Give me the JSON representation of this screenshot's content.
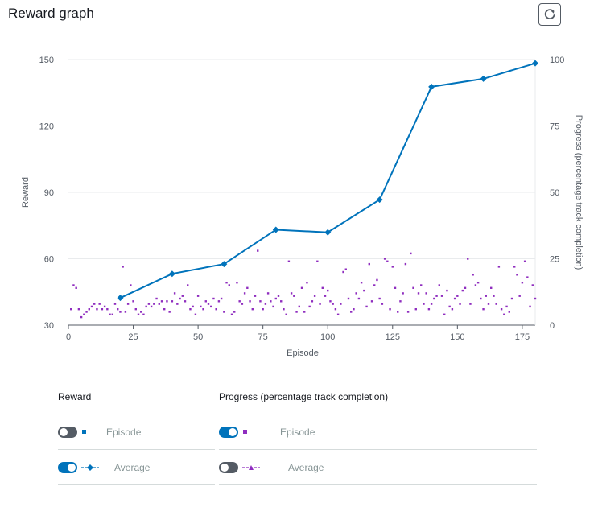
{
  "title": "Reward graph",
  "refresh_icon": "refresh-icon",
  "colors": {
    "reward": "#0073bb",
    "progress": "#8f2dbf",
    "grid": "#e9ebed",
    "axis": "#545b64"
  },
  "chart_data": {
    "type": "line",
    "xlabel": "Episode",
    "ylabel": "Reward",
    "y2label": "Progress (percentage track completion)",
    "xlim": [
      0,
      180
    ],
    "ylim": [
      30,
      150
    ],
    "y2lim": [
      0,
      100
    ],
    "x_ticks": [
      0,
      25,
      50,
      75,
      100,
      125,
      150,
      175
    ],
    "y_ticks": [
      30,
      60,
      90,
      120,
      150
    ],
    "y2_ticks": [
      0,
      25,
      50,
      75,
      100
    ],
    "grid": true,
    "series": [
      {
        "name": "Average",
        "group": "Reward",
        "axis": "left",
        "marker": "diamond",
        "x": [
          20,
          40,
          60,
          80,
          100,
          120,
          140,
          160,
          180
        ],
        "values": [
          42.3,
          53.2,
          57.6,
          73.1,
          71.9,
          86.7,
          137.7,
          141.3,
          148.3
        ]
      },
      {
        "name": "Episode",
        "group": "Progress (percentage track completion)",
        "axis": "right",
        "marker": "square",
        "x": [
          1,
          2,
          3,
          4,
          5,
          6,
          7,
          8,
          9,
          10,
          11,
          12,
          13,
          14,
          15,
          16,
          17,
          18,
          19,
          20,
          21,
          22,
          23,
          24,
          25,
          26,
          27,
          28,
          29,
          30,
          31,
          32,
          33,
          34,
          35,
          36,
          37,
          38,
          39,
          40,
          41,
          42,
          43,
          44,
          45,
          46,
          47,
          48,
          49,
          50,
          51,
          52,
          53,
          54,
          55,
          56,
          57,
          58,
          59,
          60,
          61,
          62,
          63,
          64,
          65,
          66,
          67,
          68,
          69,
          70,
          71,
          72,
          73,
          74,
          75,
          76,
          77,
          78,
          79,
          80,
          81,
          82,
          83,
          84,
          85,
          86,
          87,
          88,
          89,
          90,
          91,
          92,
          93,
          94,
          95,
          96,
          97,
          98,
          99,
          100,
          101,
          102,
          103,
          104,
          105,
          106,
          107,
          108,
          109,
          110,
          111,
          112,
          113,
          114,
          115,
          116,
          117,
          118,
          119,
          120,
          121,
          122,
          123,
          124,
          125,
          126,
          127,
          128,
          129,
          130,
          131,
          132,
          133,
          134,
          135,
          136,
          137,
          138,
          139,
          140,
          141,
          142,
          143,
          144,
          145,
          146,
          147,
          148,
          149,
          150,
          151,
          152,
          153,
          154,
          155,
          156,
          157,
          158,
          159,
          160,
          161,
          162,
          163,
          164,
          165,
          166,
          167,
          168,
          169,
          170,
          171,
          172,
          173,
          174,
          175,
          176,
          177,
          178,
          179,
          180
        ],
        "values": [
          6,
          15,
          14,
          6,
          3,
          4,
          5,
          6,
          7,
          8,
          6,
          8,
          6,
          7,
          6,
          4,
          4,
          8,
          6,
          5,
          22,
          5,
          8,
          15,
          9,
          6,
          4,
          5,
          4,
          7,
          8,
          7,
          8,
          10,
          8,
          9,
          6,
          9,
          5,
          9,
          12,
          8,
          10,
          11,
          9,
          15,
          6,
          7,
          4,
          11,
          7,
          6,
          9,
          8,
          7,
          10,
          6,
          9,
          10,
          5,
          16,
          15,
          4,
          5,
          16,
          9,
          8,
          12,
          14,
          9,
          6,
          11,
          28,
          9,
          6,
          8,
          12,
          9,
          7,
          10,
          11,
          9,
          6,
          4,
          24,
          12,
          11,
          5,
          7,
          14,
          5,
          16,
          7,
          9,
          11,
          24,
          8,
          14,
          11,
          13,
          9,
          8,
          6,
          4,
          8,
          20,
          21,
          10,
          5,
          6,
          12,
          10,
          16,
          13,
          7,
          23,
          9,
          15,
          17,
          10,
          8,
          25,
          24,
          6,
          22,
          14,
          5,
          9,
          12,
          23,
          5,
          27,
          14,
          6,
          12,
          15,
          8,
          12,
          6,
          8,
          10,
          11,
          15,
          11,
          4,
          13,
          7,
          6,
          10,
          11,
          8,
          13,
          14,
          25,
          8,
          19,
          15,
          16,
          10,
          6,
          11,
          8,
          14,
          11,
          8,
          22,
          6,
          4,
          7,
          5,
          10,
          22,
          19,
          11,
          16,
          24,
          18,
          7,
          15,
          10
        ]
      }
    ]
  },
  "legend": {
    "left": {
      "header": "Reward",
      "rows": [
        {
          "label": "Episode",
          "on": false,
          "marker": "square"
        },
        {
          "label": "Average",
          "on": true,
          "marker": "line-diamond"
        }
      ]
    },
    "right": {
      "header": "Progress (percentage track completion)",
      "rows": [
        {
          "label": "Episode",
          "on": true,
          "marker": "square"
        },
        {
          "label": "Average",
          "on": false,
          "marker": "line-triangle"
        }
      ]
    }
  }
}
